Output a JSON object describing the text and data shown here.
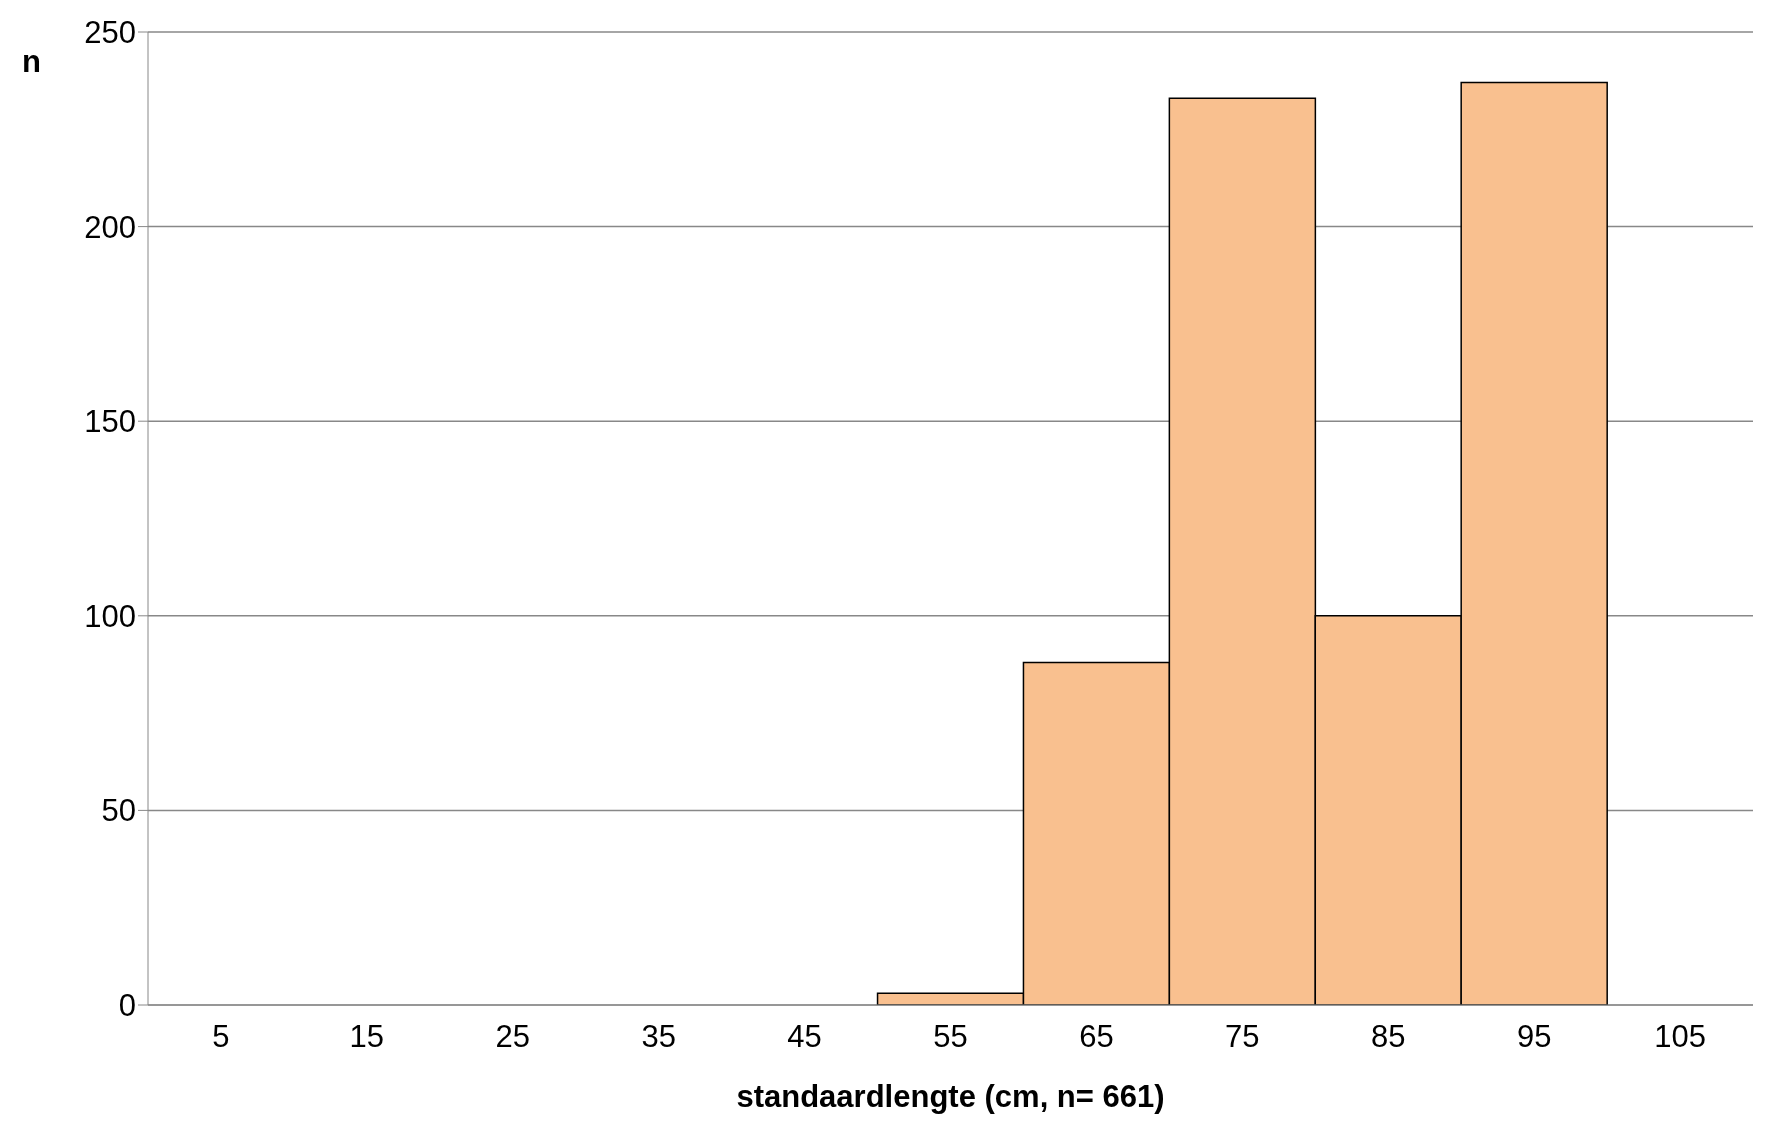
{
  "chart_data": {
    "type": "bar",
    "xlabel": "standaardlengte (cm, n= 661)",
    "ylabel": "n",
    "categories": [
      "5",
      "15",
      "25",
      "35",
      "45",
      "55",
      "65",
      "75",
      "85",
      "95",
      "105"
    ],
    "values": [
      0,
      0,
      0,
      0,
      0,
      3,
      88,
      233,
      100,
      237,
      0
    ],
    "color": "#f9c08f",
    "ylim": [
      0,
      250
    ],
    "yticks": [
      0,
      50,
      100,
      150,
      200,
      250
    ],
    "grid": "y"
  }
}
